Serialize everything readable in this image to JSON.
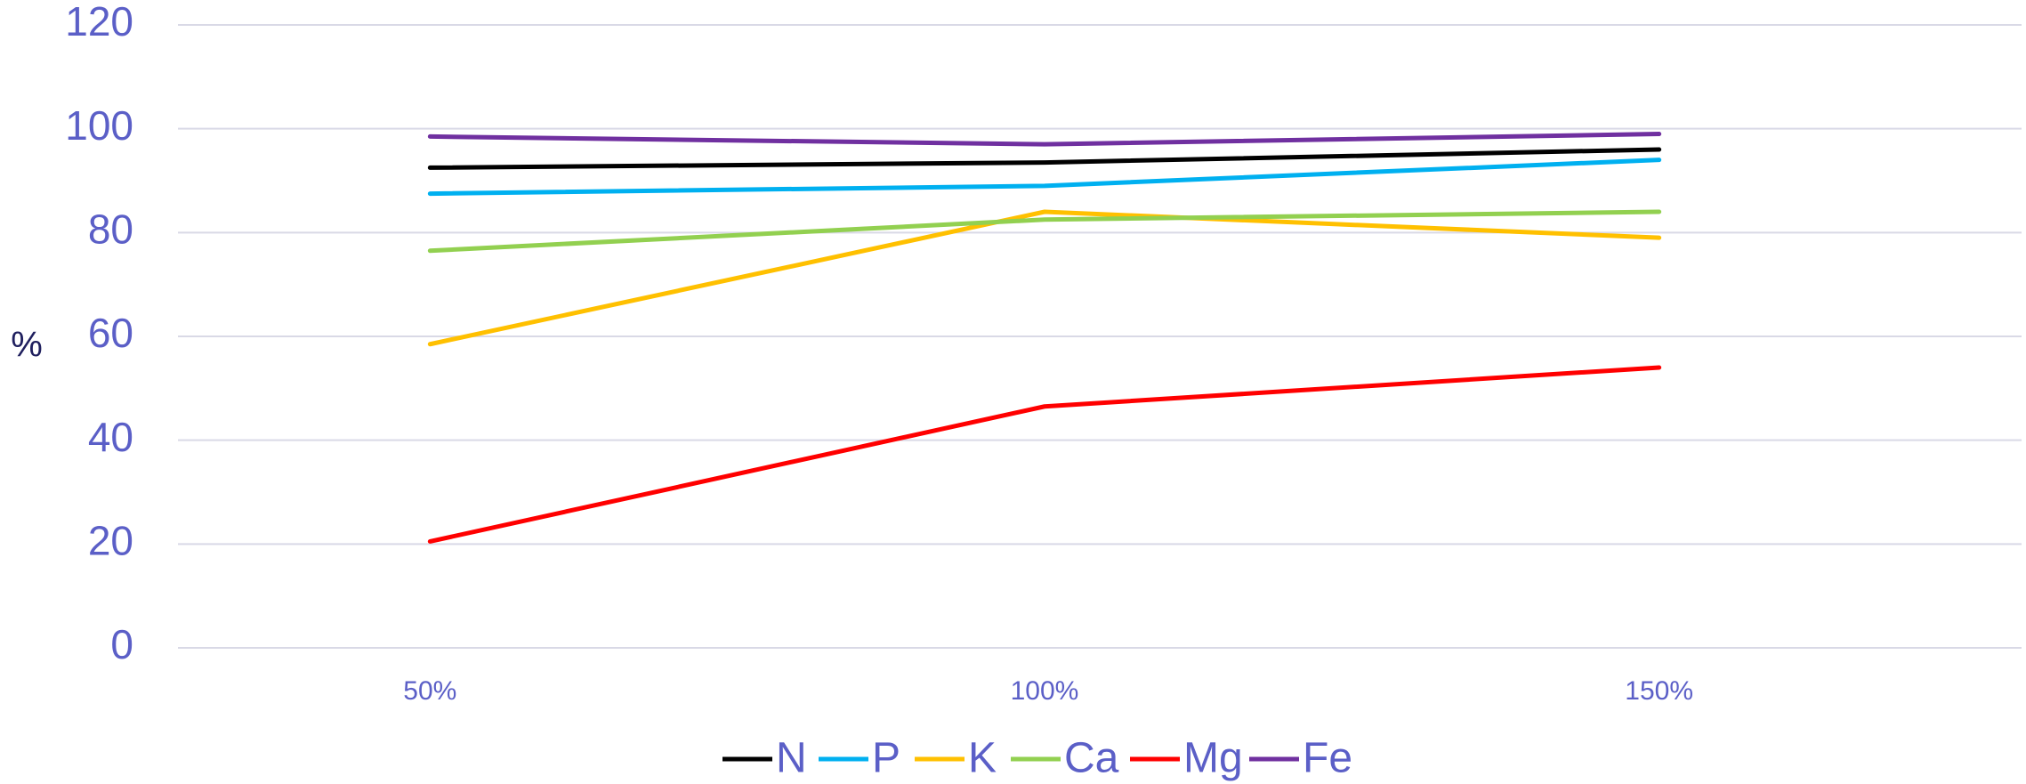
{
  "chart_data": {
    "type": "line",
    "title": "",
    "xlabel": "",
    "ylabel": "%",
    "categories": [
      "50%",
      "100%",
      "150%"
    ],
    "ylim": [
      0,
      120
    ],
    "yticks": [
      "0",
      "20",
      "40",
      "60",
      "80",
      "100",
      "120"
    ],
    "grid": true,
    "legend_position": "bottom",
    "series": [
      {
        "name": "N",
        "color": "#000000",
        "values": [
          92.5,
          93.5,
          96
        ]
      },
      {
        "name": "P",
        "color": "#00b0f0",
        "values": [
          87.5,
          89,
          94
        ]
      },
      {
        "name": "K",
        "color": "#ffc000",
        "values": [
          58.5,
          84,
          79
        ]
      },
      {
        "name": "Ca",
        "color": "#92d050",
        "values": [
          76.5,
          82.5,
          84
        ]
      },
      {
        "name": "Mg",
        "color": "#ff0000",
        "values": [
          20.5,
          46.5,
          54
        ]
      },
      {
        "name": "Fe",
        "color": "#7030a0",
        "values": [
          98.5,
          97,
          99
        ]
      }
    ]
  }
}
